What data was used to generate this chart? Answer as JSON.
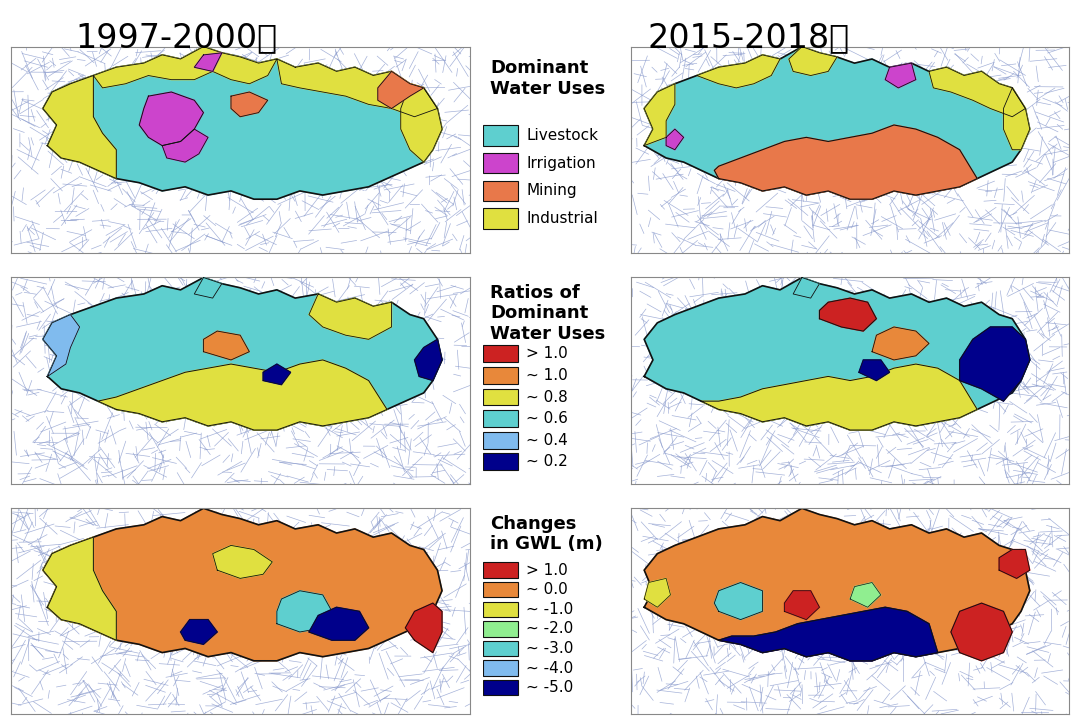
{
  "title_left": "1997-2000年",
  "title_right": "2015-2018年",
  "title_fontsize": 24,
  "legend1_title": "Dominant\nWater Uses",
  "legend1_items": [
    {
      "label": "Livestock",
      "color": "#5ECFCF"
    },
    {
      "label": "Irrigation",
      "color": "#CC44CC"
    },
    {
      "label": "Mining",
      "color": "#E8784A"
    },
    {
      "label": "Industrial",
      "color": "#E0E040"
    }
  ],
  "legend2_title": "Ratios of\nDominant\nWater Uses",
  "legend2_items": [
    {
      "label": "> 1.0",
      "color": "#CC2222"
    },
    {
      "label": "~ 1.0",
      "color": "#E8883A"
    },
    {
      "label": "~ 0.8",
      "color": "#E0E040"
    },
    {
      "label": "~ 0.6",
      "color": "#5ECFCF"
    },
    {
      "label": "~ 0.4",
      "color": "#80BBEE"
    },
    {
      "label": "~ 0.2",
      "color": "#00008B"
    }
  ],
  "legend3_title": "Changes\nin GWL (m)",
  "legend3_items": [
    {
      "label": "> 1.0",
      "color": "#CC2222"
    },
    {
      "label": "~ 0.0",
      "color": "#E8883A"
    },
    {
      "label": "~ -1.0",
      "color": "#E0E040"
    },
    {
      "label": "~ -2.0",
      "color": "#90EE90"
    },
    {
      "label": "~ -3.0",
      "color": "#5ECFCF"
    },
    {
      "label": "~ -4.0",
      "color": "#80BBEE"
    },
    {
      "label": "~ -5.0",
      "color": "#00008B"
    }
  ],
  "background_color": "#FFFFFF",
  "map_bg": "#FFFFFF",
  "river_color": "#8899CC",
  "border_color": "#111111",
  "map_border_color": "#888888",
  "legend_fontsize": 11,
  "legend_title_fontsize": 12
}
